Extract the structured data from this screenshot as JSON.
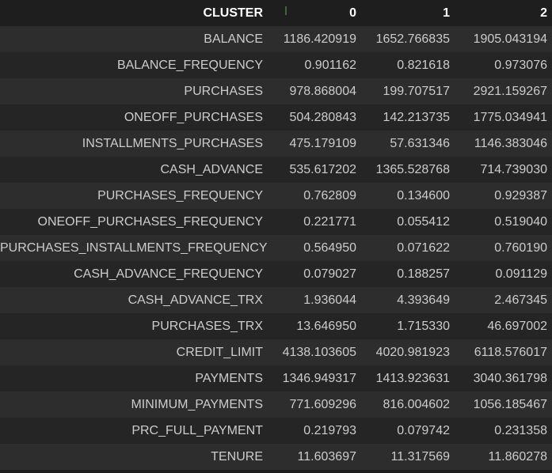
{
  "table": {
    "header": [
      "CLUSTER",
      "0",
      "1",
      "2"
    ],
    "rows": [
      {
        "label": "BALANCE",
        "values": [
          "1186.420919",
          "1652.766835",
          "1905.043194"
        ]
      },
      {
        "label": "BALANCE_FREQUENCY",
        "values": [
          "0.901162",
          "0.821618",
          "0.973076"
        ]
      },
      {
        "label": "PURCHASES",
        "values": [
          "978.868004",
          "199.707517",
          "2921.159267"
        ]
      },
      {
        "label": "ONEOFF_PURCHASES",
        "values": [
          "504.280843",
          "142.213735",
          "1775.034941"
        ]
      },
      {
        "label": "INSTALLMENTS_PURCHASES",
        "values": [
          "475.179109",
          "57.631346",
          "1146.383046"
        ]
      },
      {
        "label": "CASH_ADVANCE",
        "values": [
          "535.617202",
          "1365.528768",
          "714.739030"
        ]
      },
      {
        "label": "PURCHASES_FREQUENCY",
        "values": [
          "0.762809",
          "0.134600",
          "0.929387"
        ]
      },
      {
        "label": "ONEOFF_PURCHASES_FREQUENCY",
        "values": [
          "0.221771",
          "0.055412",
          "0.519040"
        ]
      },
      {
        "label": "PURCHASES_INSTALLMENTS_FREQUENCY",
        "values": [
          "0.564950",
          "0.071622",
          "0.760190"
        ]
      },
      {
        "label": "CASH_ADVANCE_FREQUENCY",
        "values": [
          "0.079027",
          "0.188257",
          "0.091129"
        ]
      },
      {
        "label": "CASH_ADVANCE_TRX",
        "values": [
          "1.936044",
          "4.393649",
          "2.467345"
        ]
      },
      {
        "label": "PURCHASES_TRX",
        "values": [
          "13.646950",
          "1.715330",
          "46.697002"
        ]
      },
      {
        "label": "CREDIT_LIMIT",
        "values": [
          "4138.103605",
          "4020.981923",
          "6118.576017"
        ]
      },
      {
        "label": "PAYMENTS",
        "values": [
          "1346.949317",
          "1413.923631",
          "3040.361798"
        ]
      },
      {
        "label": "MINIMUM_PAYMENTS",
        "values": [
          "771.609296",
          "816.004602",
          "1056.185467"
        ]
      },
      {
        "label": "PRC_FULL_PAYMENT",
        "values": [
          "0.219793",
          "0.079742",
          "0.231358"
        ]
      },
      {
        "label": "TENURE",
        "values": [
          "11.603697",
          "11.317569",
          "11.860278"
        ]
      }
    ]
  },
  "colors": {
    "background": "#1e1e1e",
    "row_odd": "#2d2d2d",
    "row_even": "#252525",
    "header_text": "#ffffff",
    "cell_text": "#cccccc",
    "marker": "#3a6b2e"
  }
}
